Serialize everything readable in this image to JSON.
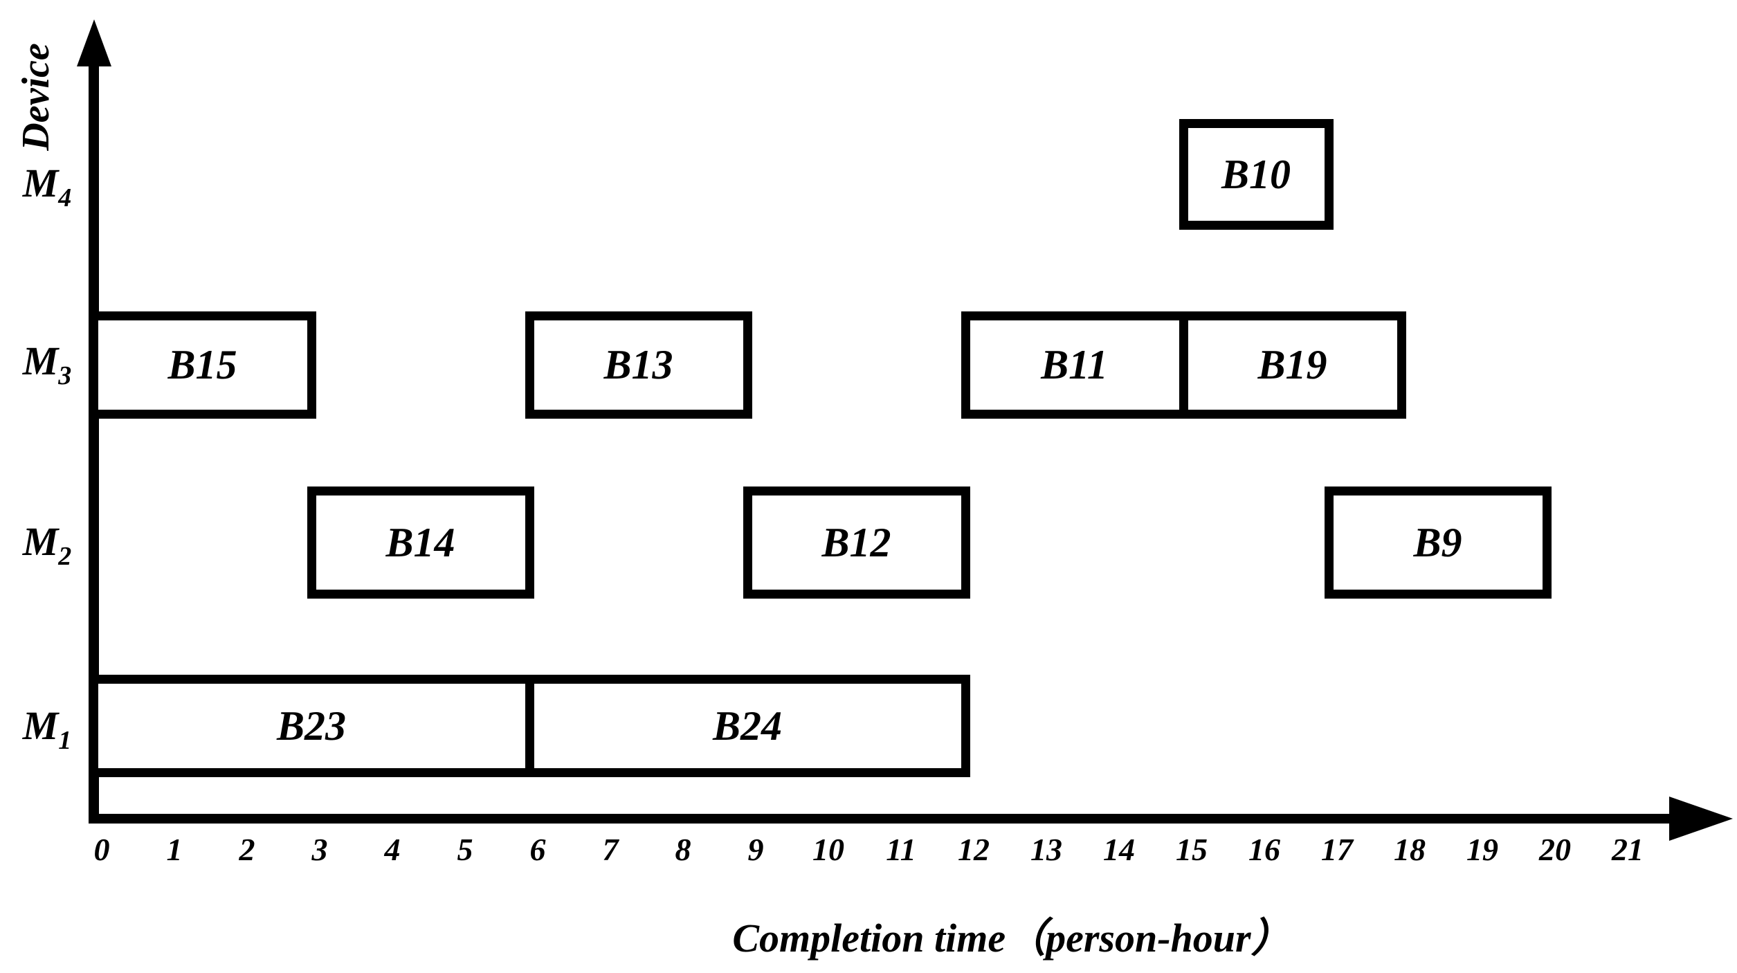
{
  "colors": {
    "foreground": "#000000",
    "background": "#ffffff"
  },
  "chart_data": {
    "type": "gantt",
    "title": "",
    "xlabel": "Completion time（person-hour）",
    "ylabel": "Device",
    "xlim": [
      0,
      21
    ],
    "x_tick_labels": [
      "0",
      "1",
      "2",
      "3",
      "4",
      "5",
      "6",
      "7",
      "8",
      "9",
      "10",
      "11",
      "12",
      "13",
      "14",
      "15",
      "16",
      "17",
      "18",
      "19",
      "20",
      "21"
    ],
    "legend": "none",
    "grid": false,
    "machines": [
      {
        "id": "M1",
        "letter": "M",
        "sub": "1"
      },
      {
        "id": "M2",
        "letter": "M",
        "sub": "2"
      },
      {
        "id": "M3",
        "letter": "M",
        "sub": "3"
      },
      {
        "id": "M4",
        "letter": "M",
        "sub": "4"
      }
    ],
    "tasks": [
      {
        "machine": "M1",
        "label": "B23",
        "start": 0,
        "end": 6
      },
      {
        "machine": "M1",
        "label": "B24",
        "start": 6,
        "end": 12
      },
      {
        "machine": "M2",
        "label": "B14",
        "start": 3,
        "end": 6
      },
      {
        "machine": "M2",
        "label": "B12",
        "start": 9,
        "end": 12
      },
      {
        "machine": "M2",
        "label": "B9",
        "start": 17,
        "end": 20
      },
      {
        "machine": "M3",
        "label": "B15",
        "start": 0,
        "end": 3
      },
      {
        "machine": "M3",
        "label": "B13",
        "start": 6,
        "end": 9
      },
      {
        "machine": "M3",
        "label": "B11",
        "start": 12,
        "end": 15
      },
      {
        "machine": "M3",
        "label": "B19",
        "start": 15,
        "end": 18
      },
      {
        "machine": "M4",
        "label": "B10",
        "start": 15,
        "end": 17
      }
    ]
  }
}
